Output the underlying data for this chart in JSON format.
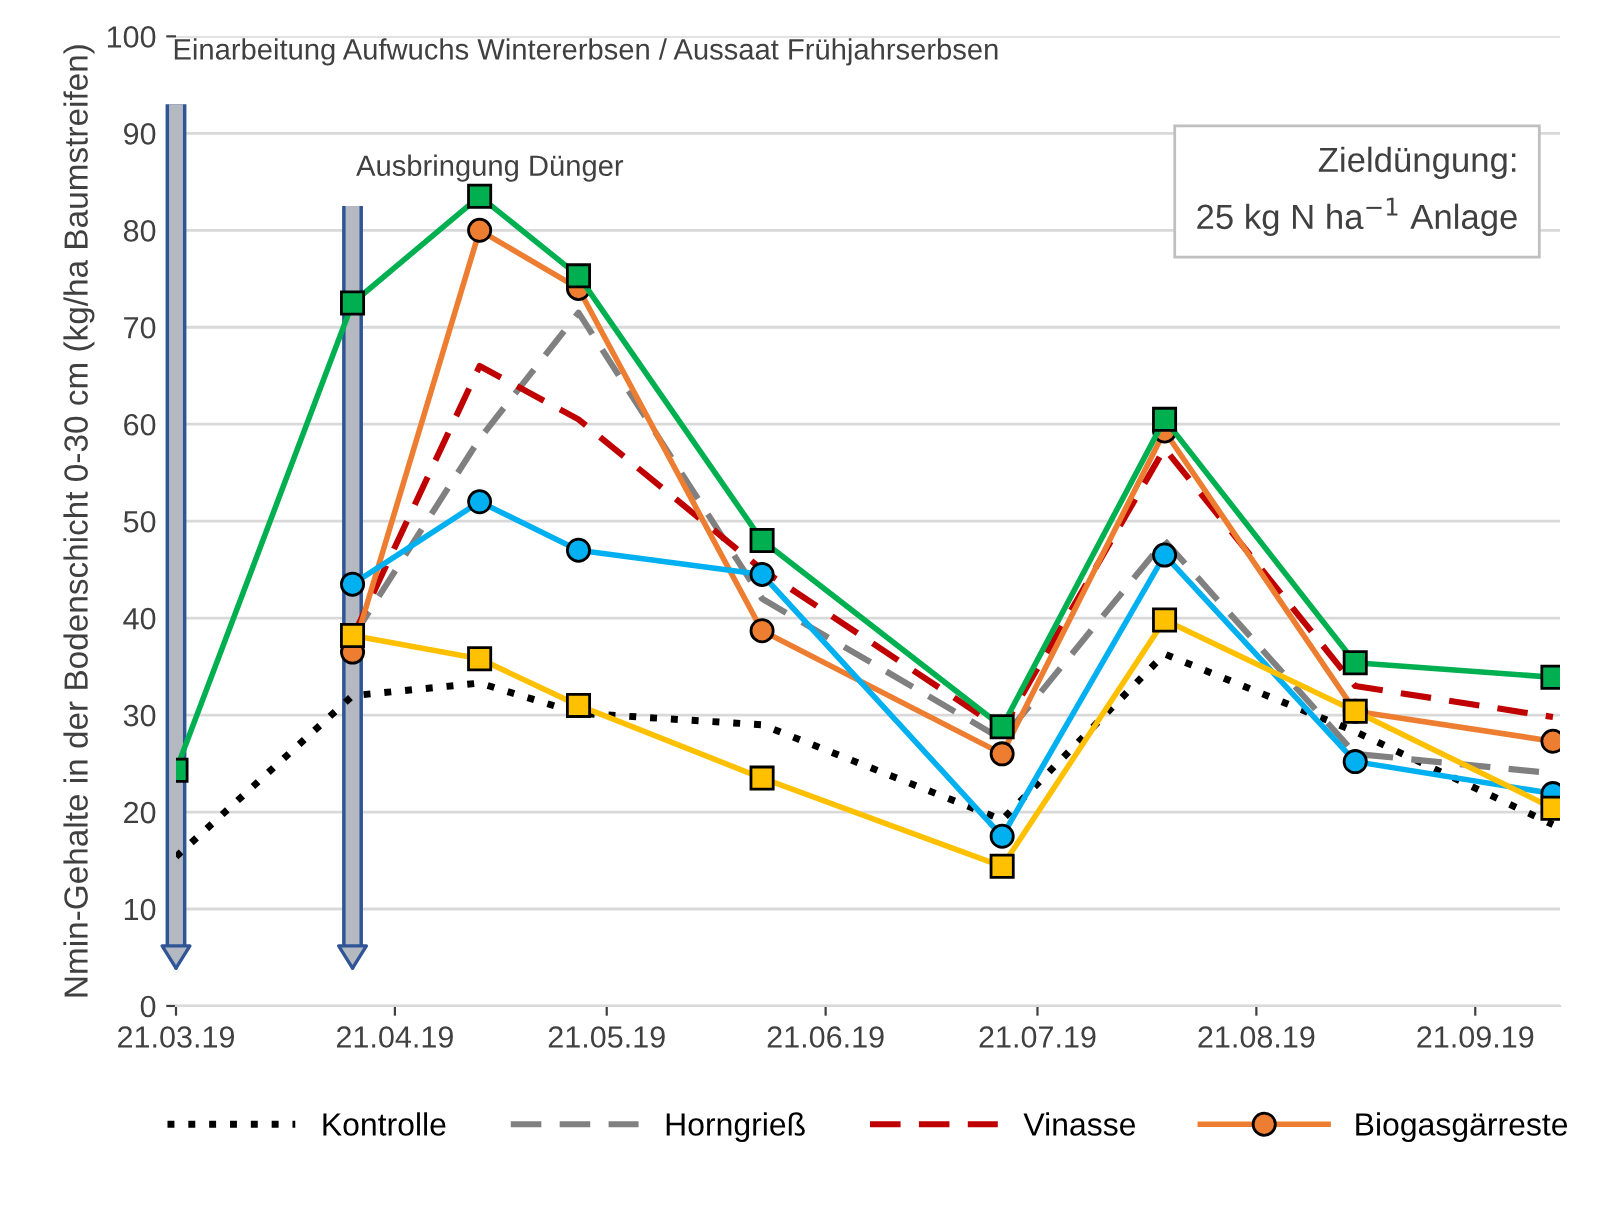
{
  "chart_data": {
    "type": "line",
    "ylabel": "Nmin-Gehalte in der Bodenschicht 0-30 cm (kg/ha Baumstreifen)",
    "ylim": [
      0,
      100
    ],
    "yticks": [
      0,
      10,
      20,
      30,
      40,
      50,
      60,
      70,
      80,
      90,
      100
    ],
    "xlim": [
      "2019-03-21",
      "2019-10-03"
    ],
    "xticks": [
      {
        "value": "2019-03-21",
        "label": "21.03.19"
      },
      {
        "value": "2019-04-21",
        "label": "21.04.19"
      },
      {
        "value": "2019-05-21",
        "label": "21.05.19"
      },
      {
        "value": "2019-06-21",
        "label": "21.06.19"
      },
      {
        "value": "2019-07-21",
        "label": "21.07.19"
      },
      {
        "value": "2019-08-21",
        "label": "21.08.19"
      },
      {
        "value": "2019-09-21",
        "label": "21.09.19"
      }
    ],
    "grid": "y",
    "legend": "bottom",
    "x": [
      "2019-03-21",
      "2019-04-15",
      "2019-05-03",
      "2019-05-17",
      "2019-06-12",
      "2019-07-16",
      "2019-08-08",
      "2019-09-04",
      "2019-10-02"
    ],
    "series": [
      {
        "name": "Kontrolle",
        "color": "#000000",
        "line_style": "dotted",
        "marker": "none",
        "values": [
          15.4,
          32,
          33.3,
          30.2,
          29,
          19.2,
          36.3,
          28.3,
          18.7
        ]
      },
      {
        "name": "Horngrieß",
        "color": "#808080",
        "line_style": "dashed",
        "marker": "none",
        "values": [
          null,
          38,
          58.5,
          71.5,
          42,
          27.5,
          48,
          26,
          24
        ]
      },
      {
        "name": "Vinasse",
        "color": "#c00000",
        "line_style": "dashed",
        "marker": "none",
        "values": [
          null,
          38,
          66,
          60.5,
          45,
          28.5,
          57.5,
          33,
          29.8
        ]
      },
      {
        "name": "Biogasgärreste",
        "color": "#ed7d31",
        "line_style": "solid",
        "marker": "circle",
        "values": [
          null,
          36.5,
          80,
          74,
          38.7,
          26,
          59.3,
          30.4,
          27.3
        ]
      },
      {
        "color": "#00b050",
        "line_style": "solid",
        "marker": "square",
        "values": [
          24.3,
          72.5,
          83.5,
          75.3,
          48,
          28.8,
          60.5,
          35.4,
          33.9
        ]
      },
      {
        "color": "#00b0f0",
        "line_style": "solid",
        "marker": "circle",
        "values": [
          null,
          43.5,
          52,
          47,
          44.5,
          17.5,
          46.5,
          25.2,
          21.9
        ]
      },
      {
        "color": "#ffc000",
        "line_style": "solid",
        "marker": "square",
        "values": [
          null,
          38.2,
          35.8,
          31,
          23.5,
          14.4,
          39.8,
          30.4,
          20.4
        ]
      }
    ],
    "ref_lines": [
      {
        "axis": "x",
        "value": "2019-03-21",
        "label": "Einarbeitung Aufwuchs Wintererbsen / Aussaat Frühjahrserbsen",
        "color": "#b4b8c0"
      },
      {
        "axis": "x",
        "value": "2019-04-15",
        "label": "Ausbringung Dünger",
        "color": "#b4b8c0"
      }
    ],
    "annotations": [
      "Zieldüngung:\n25 kg N ha$^{−1}$ Anlage"
    ]
  }
}
